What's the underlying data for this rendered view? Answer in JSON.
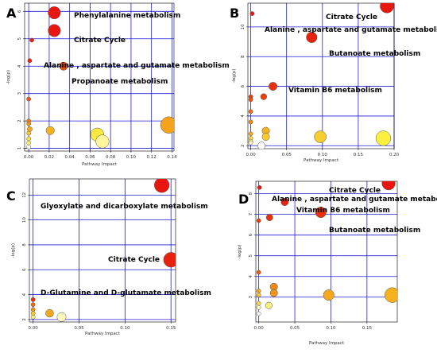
{
  "chart_data": [
    {
      "type": "scatter",
      "panel_label": "A",
      "xlabel": "Pathway Impact",
      "ylabel": "-log(p)",
      "xlim": [
        -0.004,
        0.142
      ],
      "ylim": [
        0.9,
        6.3
      ],
      "xticks": [
        0.0,
        0.02,
        0.04,
        0.06,
        0.08,
        0.1,
        0.12,
        0.14
      ],
      "xtick_labels": [
        "0.00",
        "0.02",
        "0.04",
        "0.06",
        "0.08",
        "0.10",
        "0.12",
        "0.14"
      ],
      "yticks": [
        1,
        2,
        3,
        4,
        5,
        6
      ],
      "ytick_labels": [
        "1",
        "2",
        "3",
        "4",
        "5",
        "6"
      ],
      "points": [
        {
          "x": 0.025,
          "y": 5.95,
          "size": 3,
          "color": "#e8160e"
        },
        {
          "x": 0.025,
          "y": 5.3,
          "size": 3,
          "color": "#e8160e"
        },
        {
          "x": 0.003,
          "y": 4.95,
          "size": 1,
          "color": "#e8230c"
        },
        {
          "x": 0.001,
          "y": 4.2,
          "size": 1,
          "color": "#e8230c"
        },
        {
          "x": 0.034,
          "y": 4.0,
          "size": 2,
          "color": "#e2500e"
        },
        {
          "x": 0.0,
          "y": 2.8,
          "size": 1,
          "color": "#e85a10"
        },
        {
          "x": 0.0,
          "y": 2.0,
          "size": 1,
          "color": "#ef7d12"
        },
        {
          "x": 0.0,
          "y": 1.9,
          "size": 1,
          "color": "#f09417"
        },
        {
          "x": 0.001,
          "y": 1.7,
          "size": 1.2,
          "color": "#f5a81c"
        },
        {
          "x": 0.021,
          "y": 1.65,
          "size": 2,
          "color": "#f5b21f"
        },
        {
          "x": 0.0,
          "y": 1.55,
          "size": 1,
          "color": "#f7c830"
        },
        {
          "x": 0.0,
          "y": 1.35,
          "size": 1,
          "color": "#fbe04a"
        },
        {
          "x": 0.0,
          "y": 1.2,
          "size": 1,
          "color": "#fdf07a"
        },
        {
          "x": 0.0,
          "y": 1.05,
          "size": 1,
          "color": "#ffffe0"
        },
        {
          "x": 0.067,
          "y": 1.5,
          "size": 3.2,
          "color": "#fbe940"
        },
        {
          "x": 0.072,
          "y": 1.25,
          "size": 3.2,
          "color": "#fdf69a"
        },
        {
          "x": 0.137,
          "y": 1.85,
          "size": 4,
          "color": "#f5a31b"
        }
      ],
      "annotations": [
        {
          "text": "Phenylalanine metabolism",
          "x": 0.031,
          "y": 5.95
        },
        {
          "text": "Citrate Cycle",
          "x": 0.031,
          "y": 5.3
        },
        {
          "text": "Alanine , aspartate and gutamate metabolism",
          "x": 0.007,
          "y": 4.4
        },
        {
          "text": "Propanoate metabolism",
          "x": 0.039,
          "y": 3.8
        }
      ]
    },
    {
      "type": "scatter",
      "panel_label": "B",
      "xlabel": "Pathway Impact",
      "ylabel": "-log(p)",
      "xlim": [
        -0.004,
        0.2
      ],
      "ylim": [
        1.8,
        11.6
      ],
      "xticks": [
        0.0,
        0.05,
        0.1,
        0.15,
        0.2
      ],
      "xtick_labels": [
        "0.00",
        "0.05",
        "0.10",
        "0.15",
        "0.20"
      ],
      "yticks": [
        2,
        4,
        6,
        8,
        10
      ],
      "ytick_labels": [
        "2",
        "4",
        "6",
        "8",
        "10"
      ],
      "points": [
        {
          "x": 0.19,
          "y": 11.4,
          "size": 3.3,
          "color": "#e8160e"
        },
        {
          "x": 0.002,
          "y": 10.9,
          "size": 1,
          "color": "#e8160e"
        },
        {
          "x": 0.085,
          "y": 9.3,
          "size": 2.6,
          "color": "#e8230c"
        },
        {
          "x": 0.031,
          "y": 6.0,
          "size": 2,
          "color": "#e8300c"
        },
        {
          "x": 0.018,
          "y": 5.3,
          "size": 1.5,
          "color": "#e8400c"
        },
        {
          "x": 0.0,
          "y": 5.3,
          "size": 1,
          "color": "#e8400c"
        },
        {
          "x": 0.0,
          "y": 5.1,
          "size": 1,
          "color": "#e85010"
        },
        {
          "x": 0.0,
          "y": 4.3,
          "size": 1,
          "color": "#ed6a12"
        },
        {
          "x": 0.0,
          "y": 3.6,
          "size": 1,
          "color": "#f08814"
        },
        {
          "x": 0.0,
          "y": 2.8,
          "size": 1,
          "color": "#f5a81c"
        },
        {
          "x": 0.021,
          "y": 3.0,
          "size": 1.8,
          "color": "#f5b21f"
        },
        {
          "x": 0.021,
          "y": 2.6,
          "size": 1.8,
          "color": "#f7c830"
        },
        {
          "x": 0.0,
          "y": 2.5,
          "size": 1,
          "color": "#fbe04a"
        },
        {
          "x": 0.0,
          "y": 2.3,
          "size": 1,
          "color": "#fdf07a"
        },
        {
          "x": 0.0,
          "y": 2.2,
          "size": 1,
          "color": "#fefac0"
        },
        {
          "x": 0.015,
          "y": 2.0,
          "size": 1.8,
          "color": "#ffffff"
        },
        {
          "x": 0.097,
          "y": 2.6,
          "size": 2.9,
          "color": "#f7cd30"
        },
        {
          "x": 0.185,
          "y": 2.5,
          "size": 3.6,
          "color": "#fbf040"
        }
      ],
      "annotations": [
        {
          "text": "Citrate Cycle",
          "x": 0.115,
          "y": 11.4
        },
        {
          "text": "Alanine , aspartate and gutamate metabolism",
          "x": 0.011,
          "y": 10.4
        },
        {
          "text": "Butanoate metabolism",
          "x": 0.091,
          "y": 8.6
        },
        {
          "text": "Vitamin B6 metabolism",
          "x": 0.037,
          "y": 6.0
        }
      ]
    },
    {
      "type": "scatter",
      "panel_label": "C",
      "xlabel": "Pathway Impact",
      "ylabel": "-log(p)",
      "xlim": [
        -0.004,
        0.155
      ],
      "ylim": [
        1.8,
        13.3
      ],
      "xticks": [
        0.0,
        0.05,
        0.1,
        0.15
      ],
      "xtick_labels": [
        "0.00",
        "0.05",
        "0.10",
        "0.15"
      ],
      "yticks": [
        2,
        4,
        6,
        8,
        10,
        12
      ],
      "ytick_labels": [
        "2",
        "4",
        "6",
        "8",
        "10",
        "12"
      ],
      "points": [
        {
          "x": 0.14,
          "y": 12.8,
          "size": 3.6,
          "color": "#e8160e"
        },
        {
          "x": 0.15,
          "y": 6.8,
          "size": 3.6,
          "color": "#e8230c"
        },
        {
          "x": 0.0,
          "y": 3.6,
          "size": 1,
          "color": "#e8300c"
        },
        {
          "x": 0.0,
          "y": 3.2,
          "size": 1,
          "color": "#ed6a12"
        },
        {
          "x": 0.0,
          "y": 2.8,
          "size": 1,
          "color": "#f09417"
        },
        {
          "x": 0.0,
          "y": 2.5,
          "size": 1,
          "color": "#f7c830"
        },
        {
          "x": 0.0,
          "y": 2.2,
          "size": 1,
          "color": "#fdf07a"
        },
        {
          "x": 0.018,
          "y": 2.5,
          "size": 1.9,
          "color": "#f5a81c"
        },
        {
          "x": 0.031,
          "y": 2.2,
          "size": 2.2,
          "color": "#fefac0"
        }
      ],
      "annotations": [
        {
          "text": "Glyoxylate and dicarboxylate metabolism",
          "x": 0.0,
          "y": 11.8
        },
        {
          "text": "Citrate Cycle",
          "x": 0.085,
          "y": 7.0
        },
        {
          "text": "D-Glutamine and D-glutamate metabolism",
          "x": 0.0,
          "y": 4.5
        }
      ]
    },
    {
      "type": "scatter",
      "panel_label": "D",
      "xlabel": "Pathway Impact",
      "ylabel": "-log(p)",
      "xlim": [
        -0.004,
        0.192
      ],
      "ylim": [
        1.8,
        8.6
      ],
      "xticks": [
        0.0,
        0.05,
        0.1,
        0.15
      ],
      "xtick_labels": [
        "0.00",
        "0.05",
        "0.10",
        "0.15"
      ],
      "yticks": [
        3,
        4,
        5,
        6,
        7,
        8
      ],
      "ytick_labels": [
        "3",
        "4",
        "5",
        "6",
        "7",
        "8"
      ],
      "points": [
        {
          "x": 0.18,
          "y": 8.5,
          "size": 3.2,
          "color": "#e8160e"
        },
        {
          "x": 0.001,
          "y": 8.3,
          "size": 1,
          "color": "#e8160e"
        },
        {
          "x": 0.036,
          "y": 7.6,
          "size": 1.8,
          "color": "#e8230c"
        },
        {
          "x": 0.086,
          "y": 7.1,
          "size": 2.6,
          "color": "#e8300c"
        },
        {
          "x": 0.015,
          "y": 6.85,
          "size": 1.6,
          "color": "#e8300c"
        },
        {
          "x": 0.0,
          "y": 6.7,
          "size": 1,
          "color": "#e8400c"
        },
        {
          "x": 0.0,
          "y": 4.2,
          "size": 1,
          "color": "#e85a10"
        },
        {
          "x": 0.021,
          "y": 3.5,
          "size": 1.8,
          "color": "#f08814"
        },
        {
          "x": 0.021,
          "y": 3.2,
          "size": 1.8,
          "color": "#f09417"
        },
        {
          "x": 0.0,
          "y": 3.3,
          "size": 1,
          "color": "#f5a81c"
        },
        {
          "x": 0.0,
          "y": 3.1,
          "size": 1,
          "color": "#f7c830"
        },
        {
          "x": 0.014,
          "y": 2.6,
          "size": 1.6,
          "color": "#fdf07a"
        },
        {
          "x": 0.0,
          "y": 2.7,
          "size": 1,
          "color": "#fbe04a"
        },
        {
          "x": 0.0,
          "y": 2.5,
          "size": 1,
          "color": "#fefac0"
        },
        {
          "x": 0.0,
          "y": 2.2,
          "size": 1,
          "color": "#ffffff"
        },
        {
          "x": 0.097,
          "y": 3.1,
          "size": 2.6,
          "color": "#f5a81c"
        },
        {
          "x": 0.185,
          "y": 3.1,
          "size": 3.6,
          "color": "#f5b21f"
        }
      ],
      "annotations": [
        {
          "text": "Citrate Cycle",
          "x": 0.092,
          "y": 8.5
        },
        {
          "text": "Alanine , aspartate and gutamate metabolism",
          "x": 0.011,
          "y": 8.1
        },
        {
          "text": "Vitamin B6 metabolism",
          "x": 0.041,
          "y": 7.6
        },
        {
          "text": "Butanoate metabolism",
          "x": 0.092,
          "y": 6.6
        }
      ]
    }
  ]
}
